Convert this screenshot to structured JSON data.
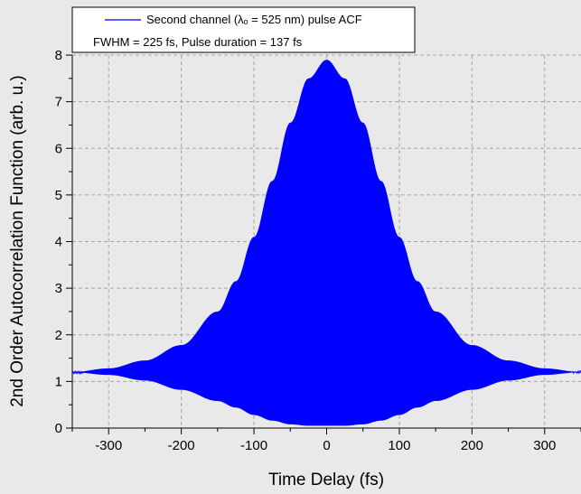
{
  "chart_data": {
    "type": "line",
    "title": "",
    "xlabel": "Time Delay (fs)",
    "ylabel": "2nd Order Autocorrelation Function (arb. u.)",
    "xlim": [
      -350,
      350
    ],
    "ylim": [
      0,
      8
    ],
    "x_ticks": [
      -300,
      -200,
      -100,
      0,
      100,
      200,
      300
    ],
    "y_ticks": [
      0,
      1,
      2,
      3,
      4,
      5,
      6,
      7,
      8
    ],
    "x_minor_step": 50,
    "y_minor_step": 0.5,
    "grid": true,
    "grid_style": "dashed",
    "legend_position": "top",
    "legend_text": "Second channel (λₒ = 525 nm) pulse ACF",
    "annotation": "FWHM = 225 fs, Pulse duration = 137 fs",
    "series": [
      {
        "name": "Second channel (λₒ = 525 nm) pulse ACF",
        "color": "#0000ff",
        "render": "fringe-envelope",
        "baseline": 1.2,
        "peak_upper": 8.0,
        "peak_lower": 0.0,
        "upper_envelope": {
          "x": [
            -350,
            -300,
            -250,
            -200,
            -150,
            -125,
            -100,
            -75,
            -50,
            -25,
            0,
            25,
            50,
            75,
            100,
            125,
            150,
            200,
            250,
            300,
            350
          ],
          "y": [
            1.2,
            1.28,
            1.45,
            1.78,
            2.5,
            3.15,
            4.1,
            5.3,
            6.55,
            7.5,
            7.9,
            7.5,
            6.55,
            5.3,
            4.1,
            3.15,
            2.5,
            1.78,
            1.45,
            1.28,
            1.2
          ]
        },
        "lower_envelope": {
          "x": [
            -350,
            -300,
            -250,
            -200,
            -150,
            -125,
            -100,
            -75,
            -50,
            -25,
            0,
            25,
            50,
            75,
            100,
            125,
            150,
            200,
            250,
            300,
            350
          ],
          "y": [
            1.2,
            1.14,
            1.02,
            0.82,
            0.58,
            0.44,
            0.28,
            0.16,
            0.08,
            0.05,
            0.05,
            0.05,
            0.08,
            0.16,
            0.28,
            0.44,
            0.58,
            0.82,
            1.02,
            1.14,
            1.2
          ]
        }
      }
    ]
  }
}
